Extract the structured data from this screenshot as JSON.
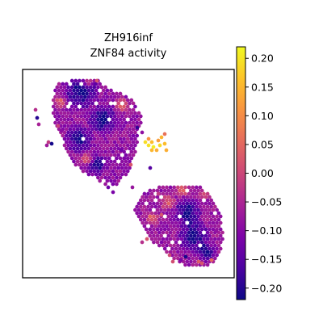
{
  "chart_data": {
    "type": "scatter",
    "title_lines": [
      "ZH916inf",
      "ZNF84 activity"
    ],
    "xlabel": "",
    "ylabel": "",
    "grid": false,
    "legend": "none",
    "colormap": "plasma",
    "colorbar": {
      "vmin": -0.22,
      "vmax": 0.22,
      "ticks": [
        0.2,
        0.15,
        0.1,
        0.05,
        0.0,
        -0.05,
        -0.1,
        -0.15,
        -0.2
      ],
      "tick_labels": [
        "0.20",
        "0.15",
        "0.10",
        "0.05",
        "0.00",
        "−0.05",
        "−0.10",
        "−0.15",
        "−0.20"
      ]
    },
    "regions": [
      {
        "name": "upper-left tissue section",
        "value_range": [
          -0.22,
          0.08
        ]
      },
      {
        "name": "lower-right tissue section",
        "value_range": [
          -0.22,
          0.1
        ]
      },
      {
        "name": "small isolated cluster",
        "value_range": [
          0.05,
          0.22
        ]
      }
    ]
  }
}
